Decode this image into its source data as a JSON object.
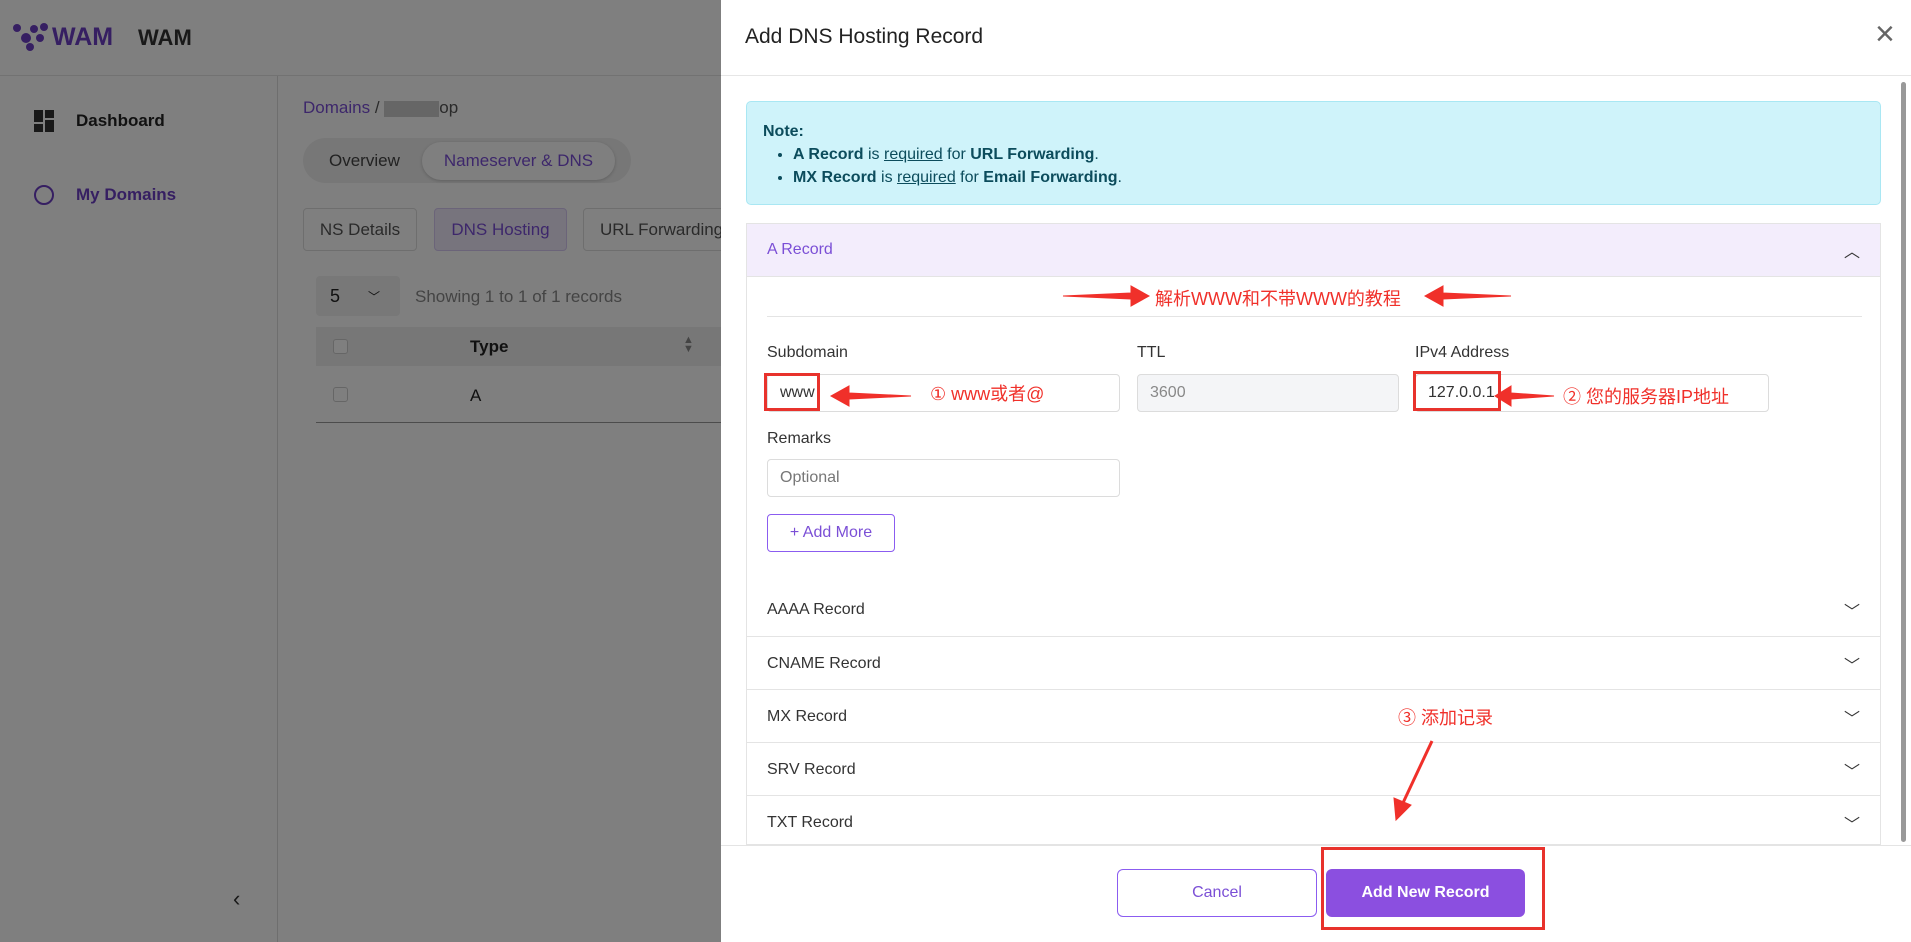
{
  "app": {
    "logo_text": "WAM",
    "brand": "WAM"
  },
  "sidebar": {
    "items": [
      {
        "label": "Dashboard",
        "icon": "dashboard-icon"
      },
      {
        "label": "My Domains",
        "icon": "globe-icon"
      }
    ],
    "collapse": "‹"
  },
  "breadcrumb": {
    "root": "Domains",
    "sep": "/",
    "current": "op"
  },
  "tabs": [
    "Overview",
    "Nameserver & DNS"
  ],
  "subtabs": [
    "NS Details",
    "DNS Hosting",
    "URL Forwarding"
  ],
  "table": {
    "page_size": "5",
    "showing": "Showing 1 to 1 of 1 records",
    "header": "Type",
    "rows": [
      {
        "type": "A"
      }
    ]
  },
  "modal": {
    "title": "Add DNS Hosting Record",
    "close": "×",
    "note": {
      "title": "Note:",
      "items": [
        {
          "b1": "A Record",
          "mid": " is ",
          "u": "required",
          "mid2": " for ",
          "b2": "URL Forwarding",
          "end": "."
        },
        {
          "b1": "MX Record",
          "mid": " is ",
          "u": "required",
          "mid2": " for ",
          "b2": "Email Forwarding",
          "end": "."
        }
      ]
    },
    "a_record": {
      "title": "A Record",
      "subdomain_label": "Subdomain",
      "subdomain_value": "www",
      "ttl_label": "TTL",
      "ttl_value": "3600",
      "ipv4_label": "IPv4 Address",
      "ipv4_value": "127.0.0.1",
      "remarks_label": "Remarks",
      "remarks_placeholder": "Optional",
      "add_more": "+ Add More"
    },
    "sections": [
      "AAAA Record",
      "CNAME Record",
      "MX Record",
      "SRV Record",
      "TXT Record"
    ],
    "cancel": "Cancel",
    "submit": "Add New Record"
  },
  "annotations": {
    "heading": "解析WWW和不带WWW的教程",
    "step1": "① www或者@",
    "step2": "② 您的服务器IP地址",
    "step3": "③ 添加记录",
    "color": "#f0302a"
  }
}
